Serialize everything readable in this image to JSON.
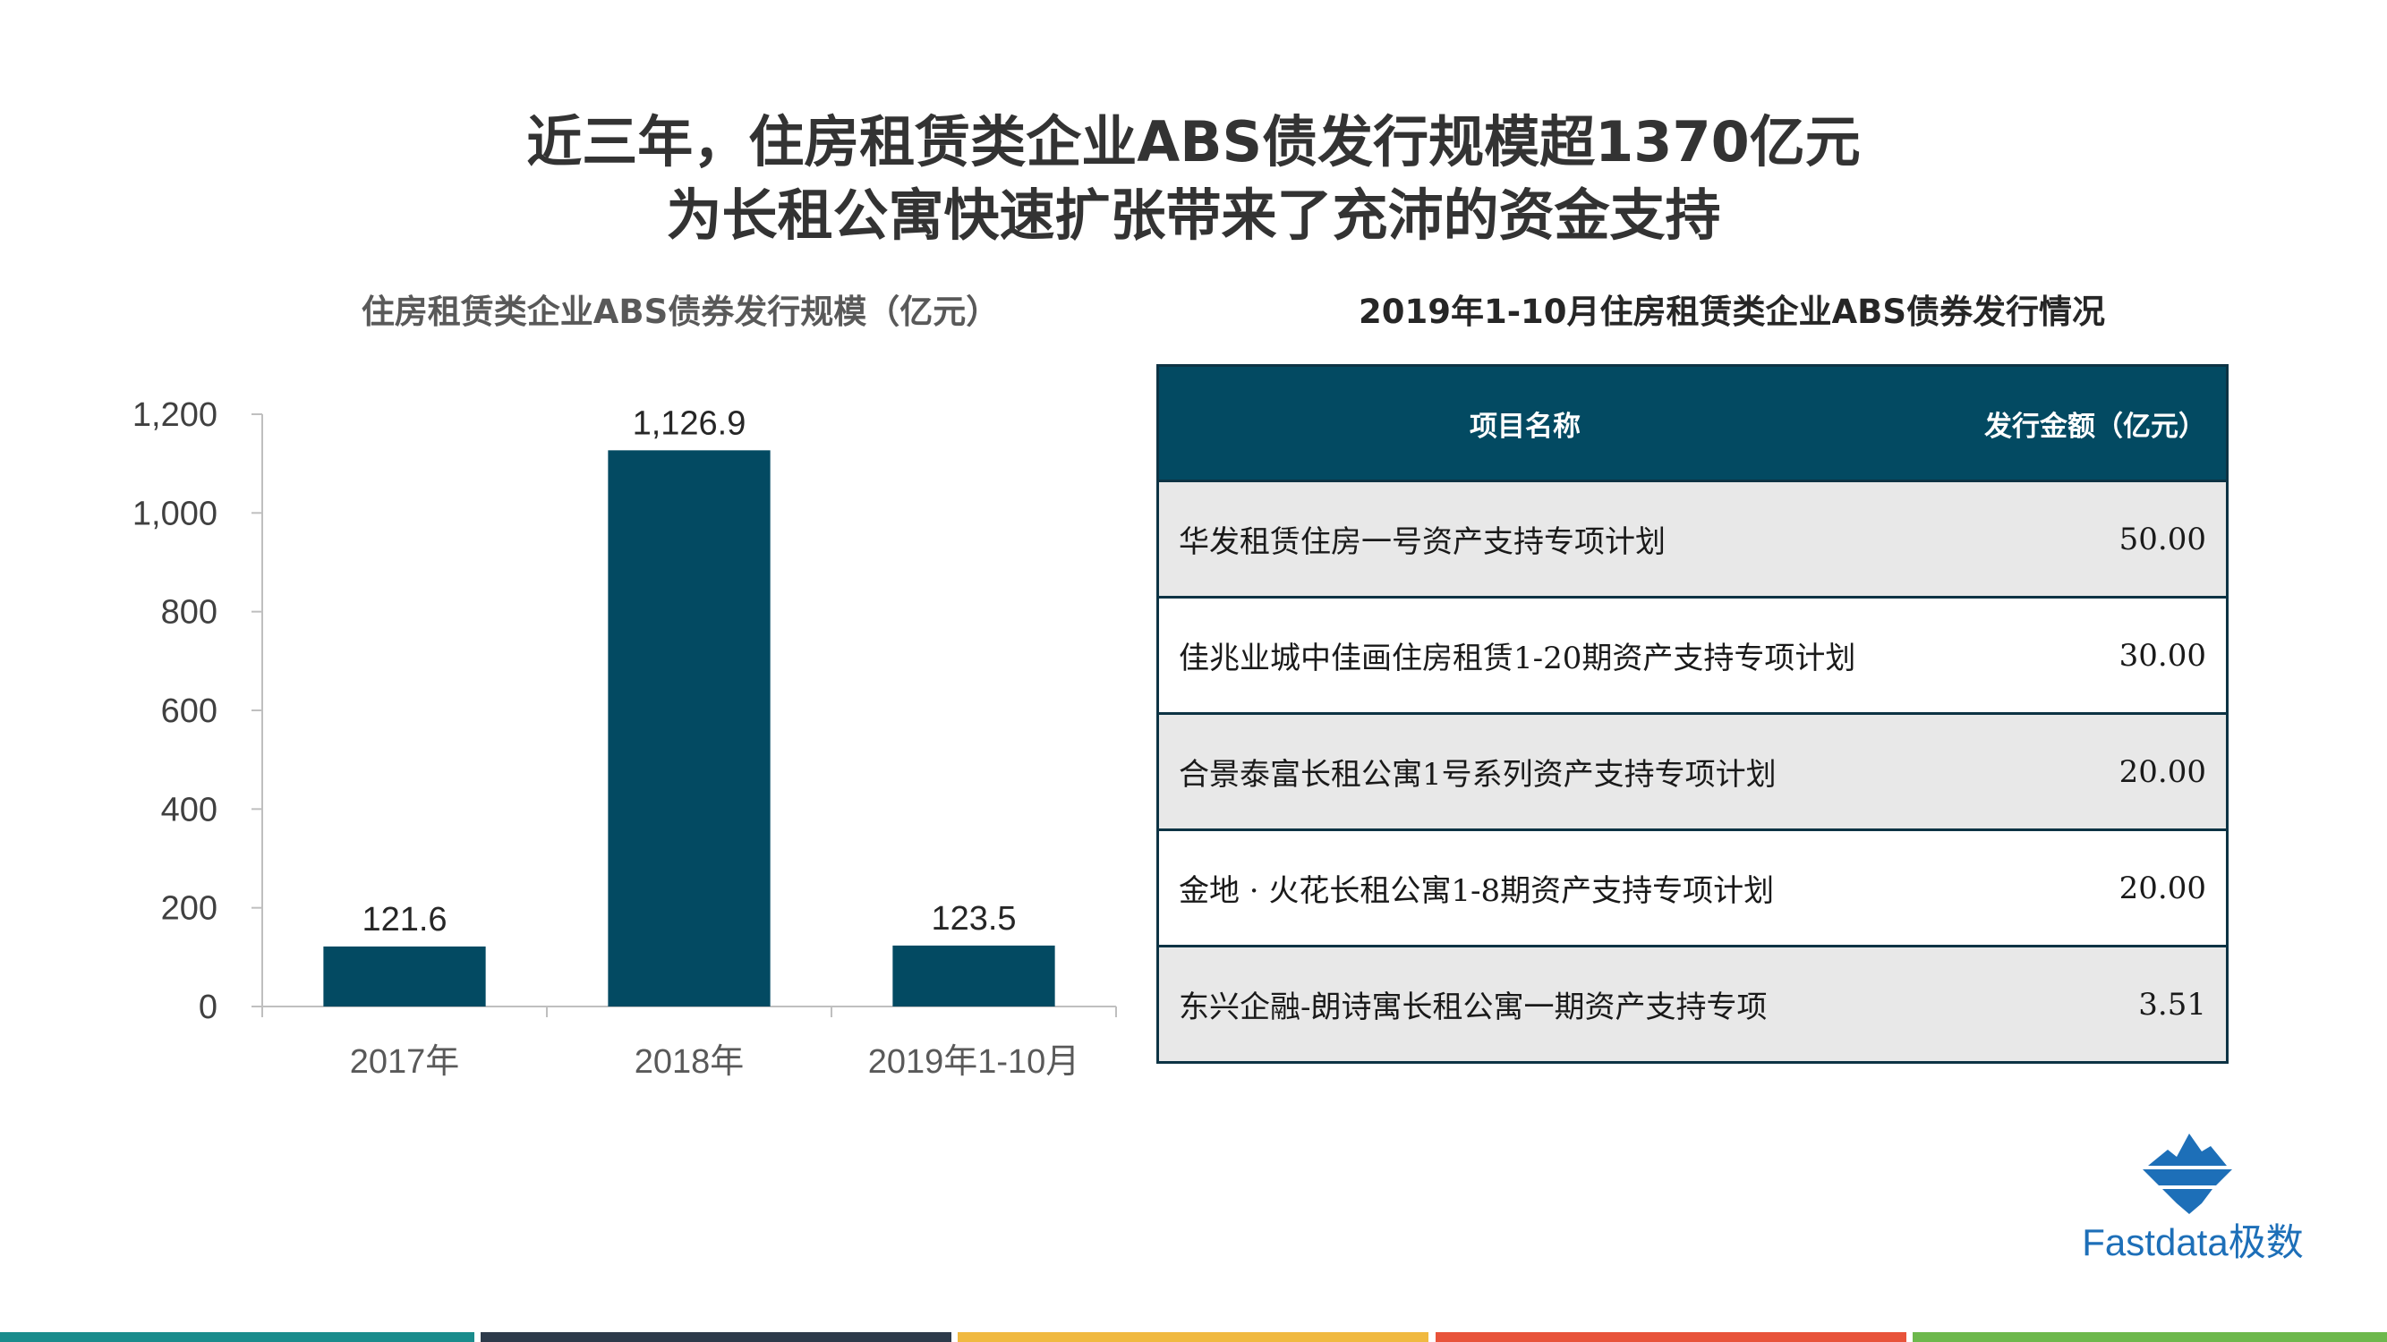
{
  "header": {
    "title_line1": "近三年，住房租赁类企业ABS债发行规模超1370亿元",
    "title_line2": "为长租公寓快速扩张带来了充沛的资金支持"
  },
  "chart_data": {
    "type": "bar",
    "title": "住房租赁类企业ABS债券发行规模（亿元）",
    "categories": [
      "2017年",
      "2018年",
      "2019年1-10月"
    ],
    "values": [
      121.6,
      1126.9,
      123.5
    ],
    "data_labels": [
      "121.6",
      "1,126.9",
      "123.5"
    ],
    "ylim": [
      0,
      1200
    ],
    "yticks": [
      0,
      200,
      400,
      600,
      800,
      1000,
      1200
    ],
    "ytick_labels": [
      "0",
      "200",
      "400",
      "600",
      "800",
      "1,000",
      "1,200"
    ],
    "xlabel": "",
    "ylabel": "",
    "grid": false,
    "bar_color": "#034a62"
  },
  "table": {
    "title": "2019年1-10月住房租赁类企业ABS债券发行情况",
    "headers": [
      "项目名称",
      "发行金额（亿元）"
    ],
    "rows": [
      [
        "华发租赁住房一号资产支持专项计划",
        "50.00"
      ],
      [
        "佳兆业城中佳画住房租赁1-20期资产支持专项计划",
        "30.00"
      ],
      [
        "合景泰富长租公寓1号系列资产支持专项计划",
        "20.00"
      ],
      [
        "金地 · 火花长租公寓1-8期资产支持专项计划",
        "20.00"
      ],
      [
        "东兴企融-朗诗寓长租公寓一期资产支持专项",
        "3.51"
      ]
    ],
    "header_color": "#034a62"
  },
  "logo": {
    "text": "Fastdata极数",
    "icon": "iceberg-logo-icon",
    "color": "#1d6fb8"
  },
  "footer": {
    "colors": [
      "#1a8c8c",
      "#2d3a4a",
      "#f0b940",
      "#e8533a",
      "#6db84c"
    ]
  }
}
